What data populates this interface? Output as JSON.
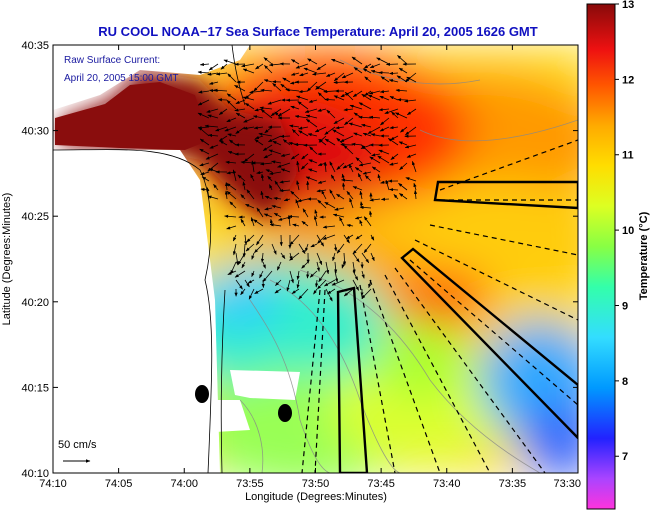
{
  "chart_data": {
    "type": "heatmap",
    "title": "RU COOL  NOAA−17  Sea Surface Temperature:  April 20, 2005 1626 GMT",
    "xlabel": "Longitude (Degrees:Minutes)",
    "ylabel": "Latitude (Degrees:Minutes)",
    "x_ticks": [
      "74:10",
      "74:05",
      "74:00",
      "73:55",
      "73:50",
      "73:45",
      "73:40",
      "73:35",
      "73:30"
    ],
    "y_ticks": [
      "40:35",
      "40:30",
      "40:25",
      "40:20",
      "40:15",
      "40:10"
    ],
    "colorbar": {
      "label": "Temperature (°C)",
      "ticks": [
        "13",
        "12",
        "11",
        "10",
        "9",
        "8",
        "7"
      ],
      "range": [
        6.3,
        13
      ]
    },
    "annotations": {
      "current_label_line1": "Raw Surface Current:",
      "current_label_line2": "April 20, 2005 15:00 GMT",
      "scale_label": "50 cm/s"
    }
  },
  "colors": {
    "title": "#1010c0",
    "land": "#ffffff",
    "warm": "#8a0d0d",
    "cool": "#33bbff"
  }
}
